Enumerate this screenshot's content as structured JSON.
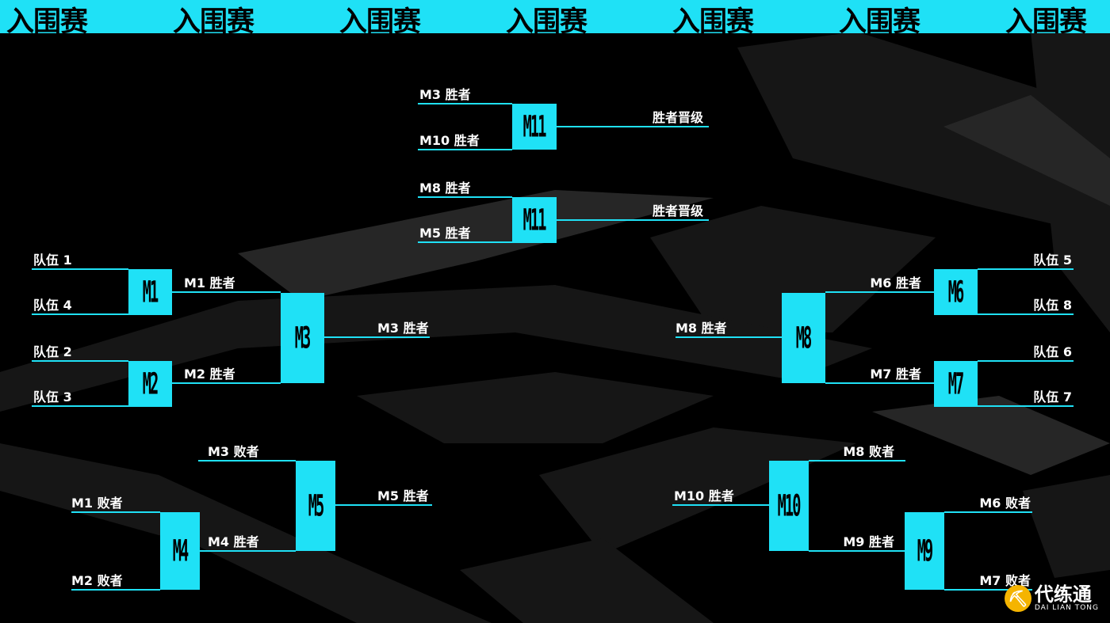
{
  "banner": {
    "text": "入围赛",
    "repeat": 7,
    "color": "#1fe1f6"
  },
  "matches": {
    "m11a": "M11",
    "m11b": "M11",
    "m1": "M1",
    "m2": "M2",
    "m3": "M3",
    "m4": "M4",
    "m5": "M5",
    "m6": "M6",
    "m7": "M7",
    "m8": "M8",
    "m9": "M9",
    "m10": "M10"
  },
  "labels": {
    "m3_winner_top": "M3 胜者",
    "m10_winner_top": "M10 胜者",
    "advance_1": "胜者晋级",
    "m8_winner_top": "M8 胜者",
    "m5_winner_top": "M5 胜者",
    "advance_2": "胜者晋级",
    "team1": "队伍 1",
    "team4": "队伍 4",
    "team2": "队伍 2",
    "team3": "队伍 3",
    "m1_winner": "M1 胜者",
    "m2_winner": "M2 胜者",
    "m3_winner": "M3 胜者",
    "team5": "队伍 5",
    "team8": "队伍 8",
    "team6": "队伍 6",
    "team7": "队伍 7",
    "m6_winner": "M6 胜者",
    "m7_winner": "M7 胜者",
    "m8_winner": "M8 胜者",
    "m3_loser": "M3 败者",
    "m4_winner": "M4 胜者",
    "m5_winner": "M5 胜者",
    "m1_loser": "M1 败者",
    "m2_loser": "M2 败者",
    "m8_loser": "M8 败者",
    "m9_winner": "M9 胜者",
    "m10_winner": "M10 胜者",
    "m6_loser": "M6 败者",
    "m7_loser": "M7 败者"
  },
  "watermark": {
    "name": "代练通",
    "sub": "DAI LIAN TONG"
  }
}
